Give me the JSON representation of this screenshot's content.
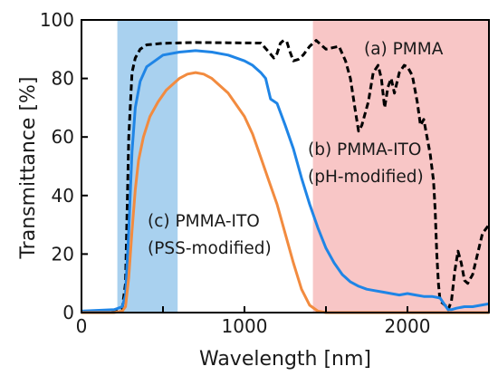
{
  "chart_data": {
    "type": "line",
    "title": "",
    "xlabel": "Wavelength [nm]",
    "ylabel": "Transmittance [%]",
    "xlim": [
      0,
      2500
    ],
    "ylim": [
      0,
      100
    ],
    "x_ticks": [
      0,
      1000,
      2000
    ],
    "y_ticks": [
      0,
      20,
      40,
      60,
      80,
      100
    ],
    "minor_x_ticks": [
      500,
      1500,
      2500
    ],
    "grid": false,
    "shaded_regions": [
      {
        "x": [
          220,
          590
        ],
        "color": "#a9d1ef"
      },
      {
        "x": [
          1420,
          2500
        ],
        "color": "#f8c6c6"
      }
    ],
    "series": [
      {
        "name": "(a) PMMA",
        "color": "#000000",
        "style": "dashed",
        "x": [
          0,
          200,
          250,
          270,
          290,
          310,
          330,
          360,
          400,
          500,
          700,
          900,
          1100,
          1150,
          1180,
          1200,
          1220,
          1240,
          1260,
          1280,
          1300,
          1330,
          1360,
          1400,
          1440,
          1470,
          1500,
          1540,
          1580,
          1620,
          1650,
          1680,
          1700,
          1720,
          1760,
          1790,
          1820,
          1840,
          1860,
          1880,
          1900,
          1920,
          1950,
          1980,
          2000,
          2030,
          2060,
          2080,
          2100,
          2120,
          2140,
          2160,
          2170,
          2180,
          2190,
          2200,
          2220,
          2240,
          2250,
          2270,
          2290,
          2310,
          2330,
          2350,
          2370,
          2400,
          2430,
          2460,
          2500
        ],
        "values": [
          0,
          0.5,
          1.5,
          10,
          60,
          82,
          87,
          90,
          91.5,
          92,
          92.3,
          92.2,
          92.1,
          89,
          87,
          88.5,
          92,
          93,
          92.5,
          89,
          86,
          86.5,
          88,
          91,
          93,
          91.5,
          90,
          90.5,
          91,
          86,
          80,
          69,
          62,
          64,
          72,
          82,
          84.5,
          80,
          70,
          77,
          80,
          75,
          82,
          84.5,
          84,
          81,
          72,
          64,
          66,
          60,
          54,
          45,
          35,
          20,
          10,
          4,
          3,
          2,
          1,
          4,
          14,
          21,
          17,
          11,
          10,
          13,
          20,
          27,
          30
        ]
      },
      {
        "name": "(b) PMMA-ITO\n(pH-modified)",
        "color": "#1f85e6",
        "style": "solid",
        "x": [
          0,
          200,
          250,
          270,
          290,
          310,
          330,
          360,
          400,
          500,
          600,
          700,
          800,
          900,
          1000,
          1050,
          1100,
          1130,
          1160,
          1200,
          1250,
          1300,
          1350,
          1400,
          1450,
          1500,
          1550,
          1600,
          1650,
          1700,
          1750,
          1800,
          1850,
          1900,
          1950,
          2000,
          2050,
          2100,
          2150,
          2200,
          2230,
          2250,
          2270,
          2300,
          2350,
          2400,
          2450,
          2500
        ],
        "values": [
          0.5,
          1,
          2,
          6,
          28,
          55,
          70,
          79,
          84,
          88,
          89,
          89.5,
          89,
          88,
          86,
          84.5,
          82,
          80,
          73,
          71.5,
          64,
          56,
          46,
          37,
          29,
          22,
          17,
          13,
          10.5,
          9,
          8,
          7.5,
          7,
          6.5,
          6,
          6.5,
          6,
          5.5,
          5.5,
          5,
          2.5,
          1,
          1,
          1.5,
          2,
          2,
          2.5,
          3
        ]
      },
      {
        "name": "(c) PMMA-ITO\n(PSS-modified)",
        "color": "#f28b3f",
        "style": "solid",
        "x": [
          0,
          200,
          250,
          270,
          290,
          310,
          330,
          350,
          380,
          420,
          470,
          520,
          600,
          650,
          700,
          750,
          800,
          900,
          1000,
          1050,
          1100,
          1150,
          1200,
          1250,
          1300,
          1350,
          1400,
          1450,
          1500,
          2500
        ],
        "values": [
          0,
          0,
          0.5,
          2,
          12,
          28,
          42,
          52,
          60,
          67,
          72,
          76,
          80,
          81.5,
          82,
          81.5,
          80,
          75,
          67,
          61,
          53,
          45,
          37,
          27,
          17,
          8,
          2.5,
          0.5,
          0,
          0
        ]
      }
    ]
  }
}
